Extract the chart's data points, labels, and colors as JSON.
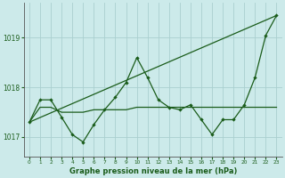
{
  "title": "Graphe pression niveau de la mer (hPa)",
  "background_color": "#cceaea",
  "grid_color": "#aacfcf",
  "line_color": "#1a5c1a",
  "xlim": [
    -0.5,
    23.5
  ],
  "ylim": [
    1016.6,
    1019.7
  ],
  "yticks": [
    1017,
    1018,
    1019
  ],
  "xticks": [
    0,
    1,
    2,
    3,
    4,
    5,
    6,
    7,
    8,
    9,
    10,
    11,
    12,
    13,
    14,
    15,
    16,
    17,
    18,
    19,
    20,
    21,
    22,
    23
  ],
  "trend_x": [
    0,
    23
  ],
  "trend_y": [
    1017.3,
    1019.45
  ],
  "flat_x": [
    0,
    1,
    2,
    3,
    4,
    5,
    6,
    7,
    8,
    9,
    10,
    11,
    12,
    13,
    14,
    15,
    16,
    17,
    18,
    19,
    20,
    21,
    22,
    23
  ],
  "flat_y": [
    1017.3,
    1017.6,
    1017.6,
    1017.5,
    1017.5,
    1017.5,
    1017.55,
    1017.55,
    1017.55,
    1017.55,
    1017.6,
    1017.6,
    1017.6,
    1017.6,
    1017.6,
    1017.6,
    1017.6,
    1017.6,
    1017.6,
    1017.6,
    1017.6,
    1017.6,
    1017.6,
    1017.6
  ],
  "marker_x": [
    0,
    1,
    2,
    3,
    4,
    5,
    6,
    7,
    8,
    9,
    10,
    11,
    12,
    13,
    14,
    15,
    16,
    17,
    18,
    19,
    20,
    21,
    22,
    23
  ],
  "marker_y": [
    1017.3,
    1017.75,
    1017.75,
    1017.4,
    1017.05,
    1016.9,
    1017.25,
    1017.55,
    1017.8,
    1018.1,
    1018.6,
    1018.2,
    1017.75,
    1017.6,
    1017.55,
    1017.65,
    1017.35,
    1017.05,
    1017.35,
    1017.35,
    1017.65,
    1018.2,
    1019.05,
    1019.45
  ]
}
